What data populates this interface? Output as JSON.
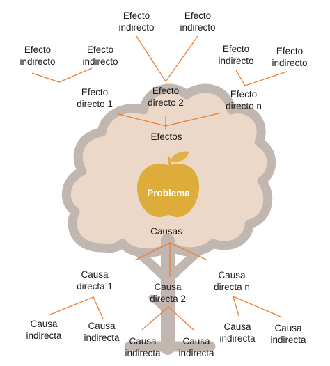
{
  "colors": {
    "canopy_fill": "#ecd8c9",
    "tree_outline": "#c2b6b0",
    "connector": "#ee7d30",
    "apple": "#deac3b",
    "leaf": "#e2b146",
    "text": "#1a1a1a"
  },
  "apple_label": "Problema",
  "hubs": {
    "effects": "Efectos",
    "causes": "Causas"
  },
  "direct_effects": [
    {
      "line1": "Efecto",
      "line2": "directo 1"
    },
    {
      "line1": "Efecto",
      "line2": "directo 2"
    },
    {
      "line1": "Efecto",
      "line2": "directo n"
    }
  ],
  "indirect_effects": [
    {
      "line1": "Efecto",
      "line2": "indirecto"
    },
    {
      "line1": "Efecto",
      "line2": "indirecto"
    },
    {
      "line1": "Efecto",
      "line2": "indirecto"
    },
    {
      "line1": "Efecto",
      "line2": "indirecto"
    },
    {
      "line1": "Efecto",
      "line2": "indirecto"
    },
    {
      "line1": "Efecto",
      "line2": "indirecto"
    }
  ],
  "direct_causes": [
    {
      "line1": "Causa",
      "line2": "directa 1"
    },
    {
      "line1": "Causa",
      "line2": "directa 2"
    },
    {
      "line1": "Causa",
      "line2": "directa n"
    }
  ],
  "indirect_causes": [
    {
      "line1": "Causa",
      "line2": "indirecta"
    },
    {
      "line1": "Causa",
      "line2": "indirecta"
    },
    {
      "line1": "Causa",
      "line2": "indirecta"
    },
    {
      "line1": "Causa",
      "line2": "indirecta"
    },
    {
      "line1": "Causa",
      "line2": "indirecta"
    },
    {
      "line1": "Causa",
      "line2": "indirecta"
    }
  ]
}
